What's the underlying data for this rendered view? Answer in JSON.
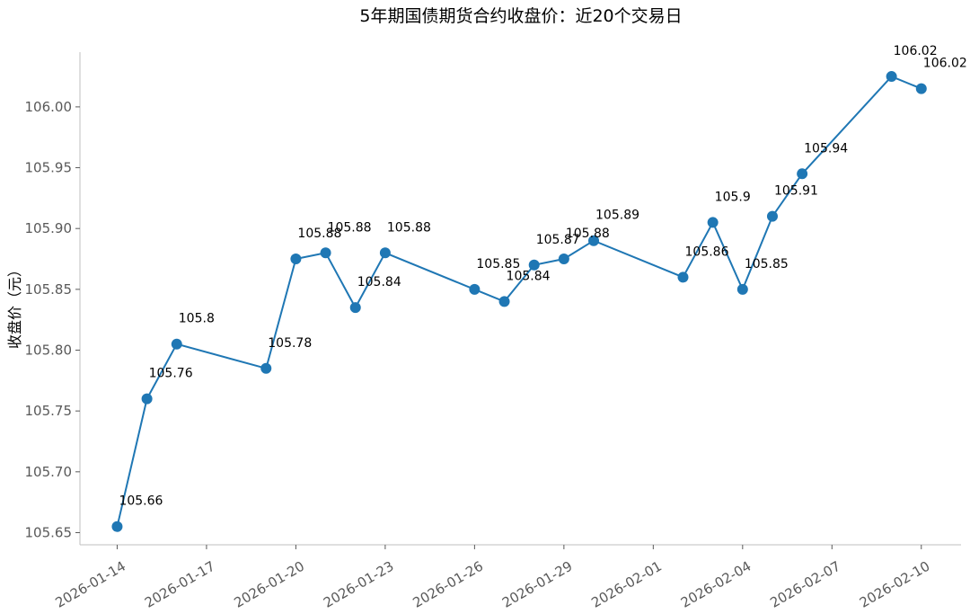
{
  "chart_data": {
    "type": "line",
    "title": "5年期国债期货合约收盘价：近20个交易日",
    "xlabel": "",
    "ylabel": "收盘价（元）",
    "x_ticks": [
      "2026-01-14",
      "2026-01-17",
      "2026-01-20",
      "2026-01-23",
      "2026-01-26",
      "2026-01-29",
      "2026-02-01",
      "2026-02-04",
      "2026-02-07",
      "2026-02-10"
    ],
    "y_ticks": [
      "105.65",
      "105.70",
      "105.75",
      "105.80",
      "105.85",
      "105.90",
      "105.95",
      "106.00"
    ],
    "ylim": [
      105.64,
      106.045
    ],
    "xlim": [
      "2026-01-12 18:00",
      "2026-02-11 08:00"
    ],
    "grid": false,
    "color": "#1f77b4",
    "series": [
      {
        "x": [
          "2026-01-14",
          "2026-01-15",
          "2026-01-16",
          "2026-01-19",
          "2026-01-20",
          "2026-01-21",
          "2026-01-22",
          "2026-01-23",
          "2026-01-26",
          "2026-01-27",
          "2026-01-28",
          "2026-01-29",
          "2026-01-30",
          "2026-02-02",
          "2026-02-03",
          "2026-02-04",
          "2026-02-05",
          "2026-02-06",
          "2026-02-09",
          "2026-02-10"
        ],
        "values": [
          105.655,
          105.76,
          105.805,
          105.785,
          105.875,
          105.88,
          105.835,
          105.88,
          105.85,
          105.84,
          105.87,
          105.875,
          105.89,
          105.86,
          105.905,
          105.85,
          105.91,
          105.945,
          106.025,
          106.015
        ],
        "labels": [
          "105.66",
          "105.76",
          "105.8",
          "105.78",
          "105.88",
          "105.88",
          "105.84",
          "105.88",
          "105.85",
          "105.84",
          "105.87",
          "105.88",
          "105.89",
          "105.86",
          "105.9",
          "105.85",
          "105.91",
          "105.94",
          "106.02",
          "106.02"
        ]
      }
    ]
  }
}
